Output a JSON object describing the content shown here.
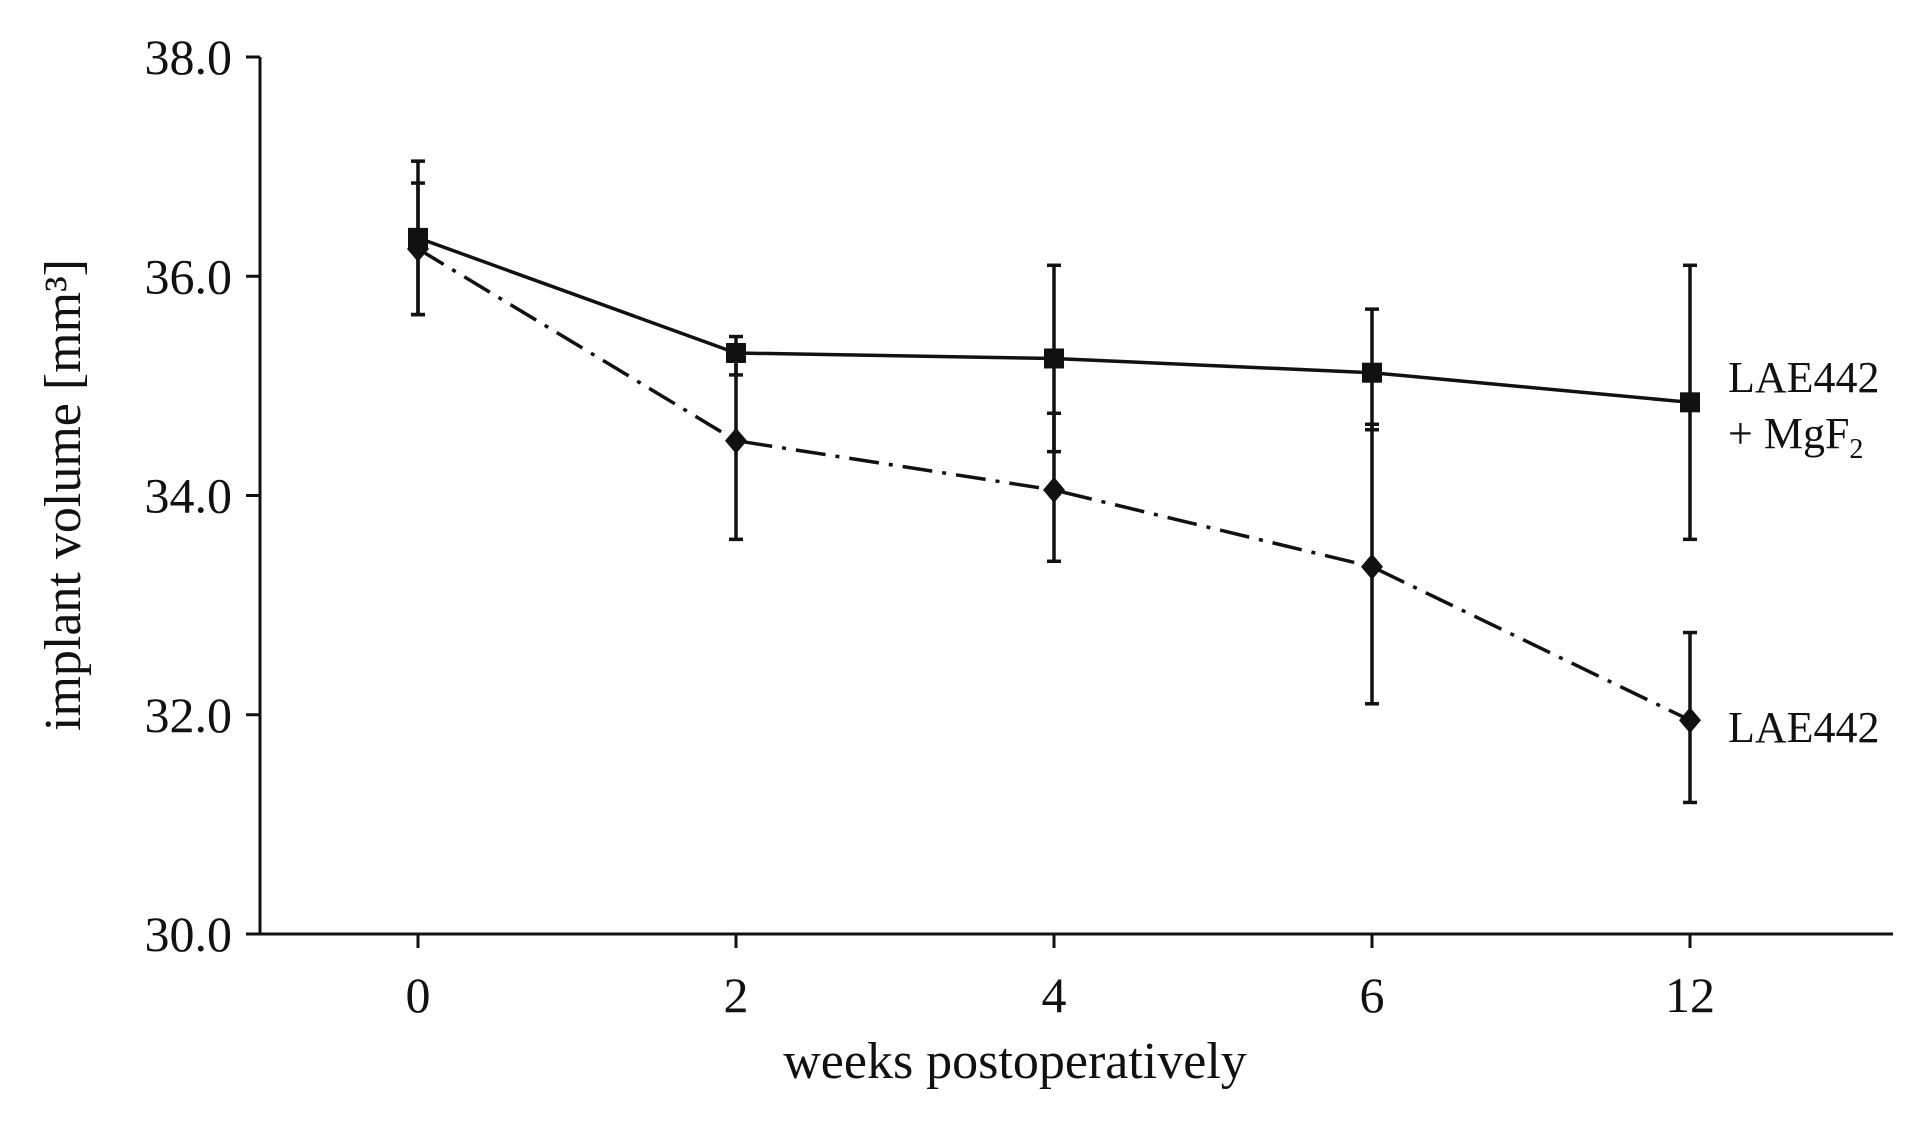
{
  "chart_data": {
    "type": "line",
    "title": "",
    "xlabel": "weeks postoperatively",
    "ylabel": "implant volume [mm³]",
    "ylim": [
      30.0,
      38.0
    ],
    "yticks": [
      "30.0",
      "32.0",
      "34.0",
      "36.0",
      "38.0"
    ],
    "categories": [
      "0",
      "2",
      "4",
      "6",
      "12"
    ],
    "grid": false,
    "series": [
      {
        "name": "LAE442 + MgF2",
        "label_line1": "LAE442",
        "label_line2": "+ MgF",
        "label_subscript": "2",
        "marker": "square",
        "line_style": "solid",
        "values": [
          36.35,
          35.3,
          35.25,
          35.12,
          34.85
        ],
        "error_low": [
          35.65,
          35.1,
          34.4,
          34.6,
          33.6
        ],
        "error_high": [
          37.05,
          35.45,
          36.1,
          35.7,
          36.1
        ]
      },
      {
        "name": "LAE442",
        "label_line1": "LAE442",
        "marker": "diamond",
        "line_style": "dash-dot",
        "values": [
          36.25,
          34.5,
          34.05,
          33.35,
          31.95
        ],
        "error_low": [
          35.65,
          33.6,
          33.4,
          32.1,
          31.2
        ],
        "error_high": [
          36.85,
          35.3,
          34.75,
          34.65,
          32.75
        ]
      }
    ]
  }
}
